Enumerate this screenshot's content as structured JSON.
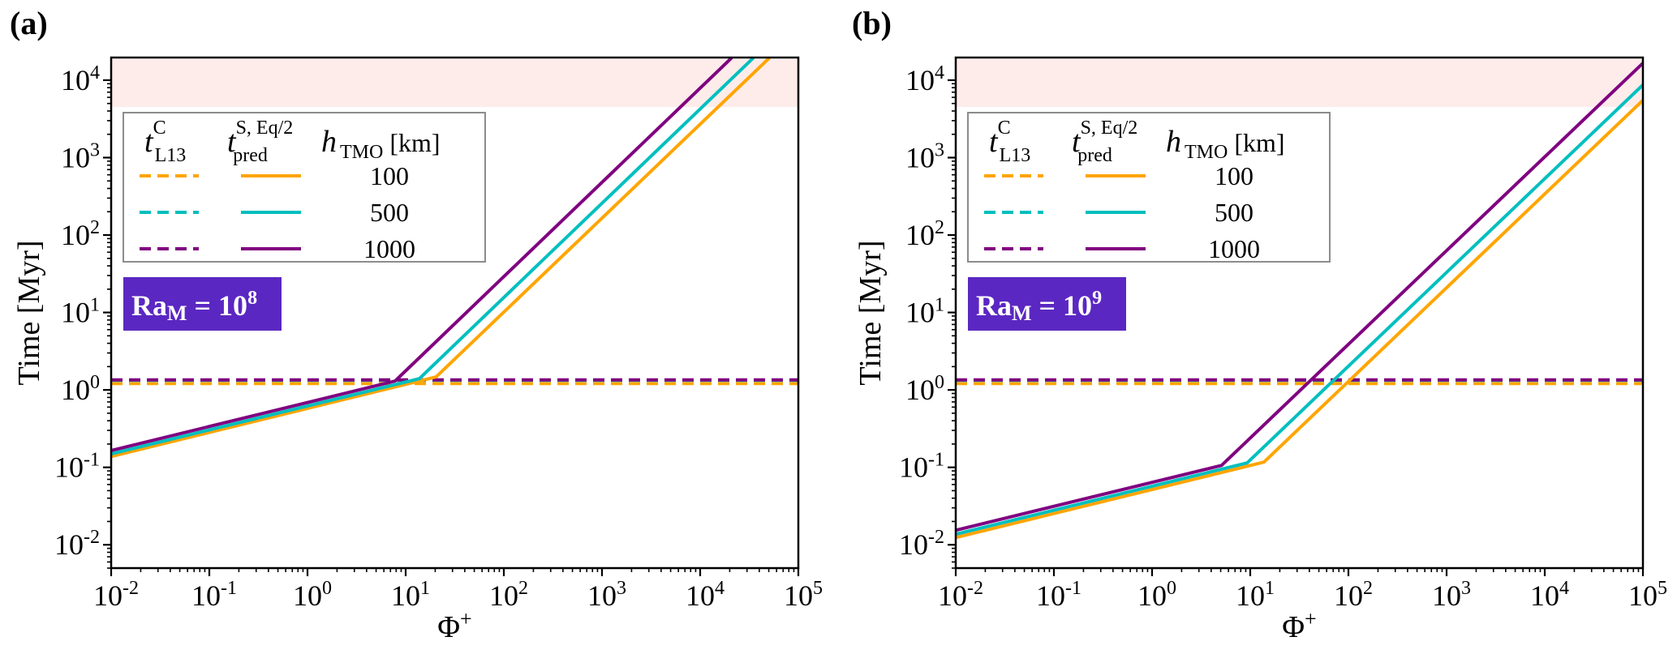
{
  "colors": {
    "orange": "#ffa500",
    "cyan": "#00bfbf",
    "purple": "#800080",
    "band": "#fdecea",
    "ra_box": "#5b27c2"
  },
  "chart_data": [
    {
      "type": "line",
      "panel_label": "(a)",
      "xscale": "log",
      "yscale": "log",
      "xlabel": "Φ+",
      "ylabel": "Time [Myr]",
      "xlim": [
        0.01,
        100000
      ],
      "ylim": [
        0.005,
        19600
      ],
      "x_tick_labels": [
        "10^-2",
        "10^-1",
        "10^0",
        "10^1",
        "10^2",
        "10^3",
        "10^4",
        "10^5"
      ],
      "y_tick_labels": [
        "10^-2",
        "10^-1",
        "10^0",
        "10^1",
        "10^2",
        "10^3",
        "10^4"
      ],
      "shaded_band": {
        "y_from": 4500,
        "y_to": 19600
      },
      "annotation": {
        "base": "Ra",
        "sub": "M",
        "mid": " = 10",
        "sup": "8"
      },
      "legend": {
        "placement": "upper-left",
        "headers": [
          {
            "main": "t",
            "sup": "C",
            "sub": "L13"
          },
          {
            "main": "t",
            "sup": "S, Eq/2",
            "sub": "pred"
          },
          {
            "main": "h",
            "sub": "TMO",
            "tail": " [km]"
          }
        ],
        "rows": [
          "100",
          "500",
          "1000"
        ]
      },
      "series": [
        {
          "name": "t_L13^C h=100",
          "h": "100",
          "color": "orange",
          "style": "dashed",
          "points": [
            [
              0.01,
              1.21
            ],
            [
              100000,
              1.21
            ]
          ]
        },
        {
          "name": "t_L13^C h=500",
          "h": "500",
          "color": "cyan",
          "style": "dashed",
          "points": [
            [
              0.01,
              1.33
            ],
            [
              100000,
              1.33
            ]
          ]
        },
        {
          "name": "t_L13^C h=1000",
          "h": "1000",
          "color": "purple",
          "style": "dashed",
          "points": [
            [
              0.01,
              1.35
            ],
            [
              100000,
              1.35
            ]
          ]
        },
        {
          "name": "t_pred^S,Eq/2 h=100",
          "h": "100",
          "color": "orange",
          "style": "solid",
          "points": [
            [
              0.01,
              0.138
            ],
            [
              20.4,
              1.47
            ],
            [
              51000,
              19500
            ]
          ]
        },
        {
          "name": "t_pred^S,Eq/2 h=500",
          "h": "500",
          "color": "cyan",
          "style": "solid",
          "points": [
            [
              0.01,
              0.149
            ],
            [
              13.8,
              1.4
            ],
            [
              35000,
              19500
            ]
          ]
        },
        {
          "name": "t_pred^S,Eq/2 h=1000",
          "h": "1000",
          "color": "purple",
          "style": "solid",
          "points": [
            [
              0.01,
              0.165
            ],
            [
              7.8,
              1.3
            ],
            [
              21000,
              19500
            ]
          ]
        }
      ]
    },
    {
      "type": "line",
      "panel_label": "(b)",
      "xscale": "log",
      "yscale": "log",
      "xlabel": "Φ+",
      "ylabel": "Time [Myr]",
      "xlim": [
        0.01,
        100000
      ],
      "ylim": [
        0.005,
        19600
      ],
      "x_tick_labels": [
        "10^-2",
        "10^-1",
        "10^0",
        "10^1",
        "10^2",
        "10^3",
        "10^4",
        "10^5"
      ],
      "y_tick_labels": [
        "10^-2",
        "10^-1",
        "10^0",
        "10^1",
        "10^2",
        "10^3",
        "10^4"
      ],
      "shaded_band": {
        "y_from": 4500,
        "y_to": 19600
      },
      "annotation": {
        "base": "Ra",
        "sub": "M",
        "mid": " = 10",
        "sup": "9"
      },
      "legend": {
        "placement": "upper-left",
        "headers": [
          {
            "main": "t",
            "sup": "C",
            "sub": "L13"
          },
          {
            "main": "t",
            "sup": "S, Eq/2",
            "sub": "pred"
          },
          {
            "main": "h",
            "sub": "TMO",
            "tail": " [km]"
          }
        ],
        "rows": [
          "100",
          "500",
          "1000"
        ]
      },
      "series": [
        {
          "name": "t_L13^C h=100",
          "h": "100",
          "color": "orange",
          "style": "dashed",
          "points": [
            [
              0.01,
              1.21
            ],
            [
              100000,
              1.21
            ]
          ]
        },
        {
          "name": "t_L13^C h=500",
          "h": "500",
          "color": "cyan",
          "style": "dashed",
          "points": [
            [
              0.01,
              1.33
            ],
            [
              100000,
              1.33
            ]
          ]
        },
        {
          "name": "t_L13^C h=1000",
          "h": "1000",
          "color": "purple",
          "style": "dashed",
          "points": [
            [
              0.01,
              1.35
            ],
            [
              100000,
              1.35
            ]
          ]
        },
        {
          "name": "t_pred^S,Eq/2 h=100",
          "h": "100",
          "color": "orange",
          "style": "solid",
          "points": [
            [
              0.01,
              0.0124
            ],
            [
              13.8,
              0.117
            ],
            [
              100000,
              5500
            ]
          ]
        },
        {
          "name": "t_pred^S,Eq/2 h=500",
          "h": "500",
          "color": "cyan",
          "style": "solid",
          "points": [
            [
              0.01,
              0.0137
            ],
            [
              9.3,
              0.114
            ],
            [
              100000,
              8700
            ]
          ]
        },
        {
          "name": "t_pred^S,Eq/2 h=1000",
          "h": "1000",
          "color": "purple",
          "style": "solid",
          "points": [
            [
              0.01,
              0.0154
            ],
            [
              5.1,
              0.106
            ],
            [
              100000,
              16600
            ]
          ]
        }
      ]
    }
  ]
}
